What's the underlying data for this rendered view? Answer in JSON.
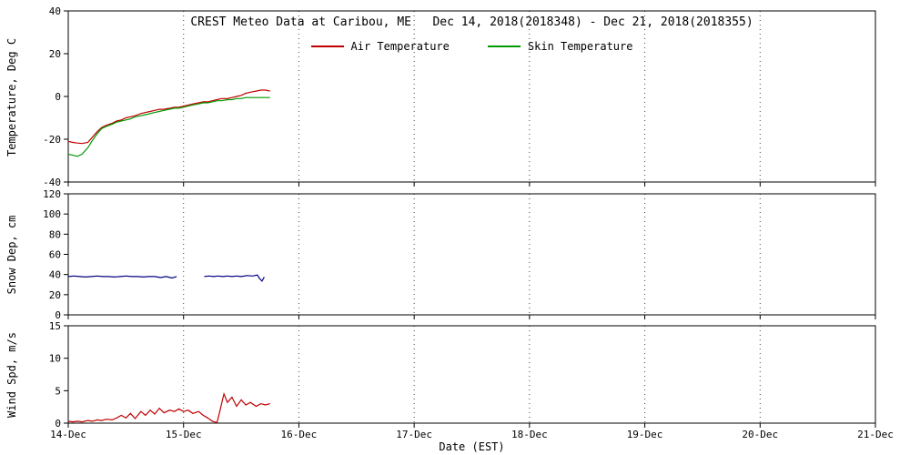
{
  "title": "CREST Meteo Data at Caribou, ME   Dec 14, 2018(2018348) - Dec 21, 2018(2018355)",
  "xlabel": "Date (EST)",
  "x_ticks": [
    "14-Dec",
    "15-Dec",
    "16-Dec",
    "17-Dec",
    "18-Dec",
    "19-Dec",
    "20-Dec",
    "21-Dec"
  ],
  "legend": [
    {
      "label": "Air Temperature",
      "color": "#c00000"
    },
    {
      "label": "Skin Temperature",
      "color": "#009900"
    }
  ],
  "colors": {
    "axis": "#000000",
    "grid": "#444444",
    "air": "#c00000",
    "skin": "#009900",
    "snow": "#000080",
    "wind": "#c00000"
  },
  "chart_data": [
    {
      "type": "line",
      "title": "CREST Meteo Data at Caribou, ME   Dec 14, 2018(2018348) - Dec 21, 2018(2018355)",
      "ylabel": "Temperature, Deg C",
      "ylim": [
        -40,
        40
      ],
      "yticks": [
        -40,
        -20,
        0,
        20,
        40
      ],
      "xlim_days": [
        0,
        7
      ],
      "grid": "vertical-dotted",
      "legend_position": "top-center",
      "series": [
        {
          "name": "Air Temperature",
          "color": "#c00000",
          "x": [
            0,
            0.04,
            0.08,
            0.12,
            0.17,
            0.21,
            0.25,
            0.29,
            0.33,
            0.38,
            0.42,
            0.46,
            0.5,
            0.54,
            0.58,
            0.63,
            0.67,
            0.71,
            0.75,
            0.79,
            0.83,
            0.88,
            0.92,
            0.96,
            1.0,
            1.04,
            1.08,
            1.13,
            1.17,
            1.21,
            1.25,
            1.29,
            1.33,
            1.38,
            1.42,
            1.46,
            1.5,
            1.54,
            1.58,
            1.63,
            1.67,
            1.71,
            1.75
          ],
          "y": [
            -21,
            -21.5,
            -21.8,
            -22,
            -21.5,
            -19,
            -16.5,
            -14.5,
            -13.5,
            -12.5,
            -11.5,
            -11,
            -10,
            -9.5,
            -9,
            -8,
            -7.5,
            -7,
            -6.5,
            -6,
            -6,
            -5.5,
            -5,
            -5,
            -4.5,
            -4,
            -3.5,
            -3,
            -2.5,
            -2.5,
            -2,
            -1.5,
            -1,
            -1,
            -0.5,
            0,
            0.5,
            1.5,
            2,
            2.5,
            3,
            3,
            2.5
          ]
        },
        {
          "name": "Skin Temperature",
          "color": "#009900",
          "x": [
            0,
            0.04,
            0.08,
            0.12,
            0.17,
            0.21,
            0.25,
            0.29,
            0.33,
            0.38,
            0.42,
            0.46,
            0.5,
            0.54,
            0.58,
            0.63,
            0.67,
            0.71,
            0.75,
            0.79,
            0.83,
            0.88,
            0.92,
            0.96,
            1.0,
            1.04,
            1.08,
            1.13,
            1.17,
            1.21,
            1.25,
            1.29,
            1.33,
            1.38,
            1.42,
            1.46,
            1.5,
            1.54,
            1.58,
            1.63,
            1.67,
            1.71,
            1.75
          ],
          "y": [
            -27,
            -27.5,
            -28,
            -27,
            -24,
            -20.5,
            -17.5,
            -15,
            -14,
            -13,
            -12,
            -11.5,
            -11,
            -10.5,
            -9.5,
            -9,
            -8.5,
            -8,
            -7.5,
            -7,
            -6.5,
            -6,
            -5.5,
            -5.5,
            -5,
            -4.5,
            -4,
            -3.5,
            -3,
            -3,
            -2.5,
            -2,
            -2,
            -1.5,
            -1.5,
            -1,
            -1,
            -0.5,
            -0.5,
            -0.5,
            -0.5,
            -0.5,
            -0.5
          ]
        }
      ]
    },
    {
      "type": "line",
      "ylabel": "Snow Dep, cm",
      "ylim": [
        0,
        120
      ],
      "yticks": [
        0,
        20,
        40,
        60,
        80,
        100,
        120
      ],
      "xlim_days": [
        0,
        7
      ],
      "grid": "vertical-dotted",
      "series": [
        {
          "name": "Snow Depth",
          "color": "#000080",
          "x": [
            0,
            0.05,
            0.1,
            0.15,
            0.2,
            0.25,
            0.3,
            0.35,
            0.4,
            0.45,
            0.5,
            0.55,
            0.6,
            0.65,
            0.7,
            0.75,
            0.8,
            0.85,
            0.9,
            0.94,
            1.06,
            1.18,
            1.22,
            1.26,
            1.3,
            1.34,
            1.38,
            1.42,
            1.46,
            1.5,
            1.55,
            1.6,
            1.64,
            1.66,
            1.68,
            1.7
          ],
          "y": [
            38,
            38.5,
            38,
            37.5,
            38,
            38.5,
            38,
            38,
            37.5,
            38,
            38.5,
            38,
            38,
            37.5,
            38,
            38,
            37,
            38,
            36.5,
            38,
            null,
            38,
            38.5,
            38,
            38.5,
            38,
            38.5,
            38,
            38.5,
            38,
            39,
            38.5,
            39.5,
            36,
            33.5,
            37.5
          ]
        }
      ]
    },
    {
      "type": "line",
      "ylabel": "Wind Spd, m/s",
      "ylim": [
        0,
        15
      ],
      "yticks": [
        0,
        5,
        10,
        15
      ],
      "xlim_days": [
        0,
        7
      ],
      "grid": "vertical-dotted",
      "series": [
        {
          "name": "Wind Speed",
          "color": "#c00000",
          "x": [
            0,
            0.04,
            0.08,
            0.12,
            0.17,
            0.21,
            0.25,
            0.29,
            0.33,
            0.38,
            0.42,
            0.46,
            0.5,
            0.54,
            0.58,
            0.63,
            0.67,
            0.71,
            0.75,
            0.79,
            0.83,
            0.88,
            0.92,
            0.96,
            1.0,
            1.04,
            1.08,
            1.13,
            1.17,
            1.21,
            1.25,
            1.29,
            1.31,
            1.33,
            1.35,
            1.38,
            1.42,
            1.46,
            1.5,
            1.54,
            1.58,
            1.63,
            1.67,
            1.71,
            1.75
          ],
          "y": [
            0.3,
            0.2,
            0.3,
            0.2,
            0.4,
            0.3,
            0.5,
            0.4,
            0.6,
            0.5,
            0.8,
            1.2,
            0.8,
            1.5,
            0.7,
            1.8,
            1.2,
            2.0,
            1.4,
            2.3,
            1.6,
            2.0,
            1.8,
            2.2,
            1.8,
            2.0,
            1.5,
            1.8,
            1.2,
            0.8,
            0.3,
            0.1,
            1.5,
            3.0,
            4.5,
            3.2,
            4.0,
            2.6,
            3.6,
            2.8,
            3.2,
            2.6,
            3.0,
            2.8,
            3.0
          ]
        }
      ]
    }
  ]
}
